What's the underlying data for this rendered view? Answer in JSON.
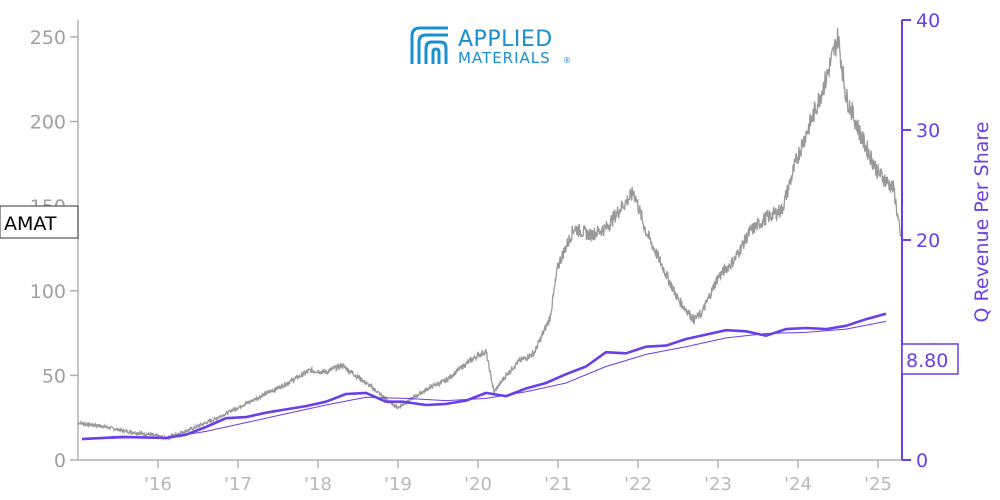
{
  "logo": {
    "line1": "APPLIED",
    "line2": "MATERIALS",
    "mark": "®"
  },
  "ticker_label": "AMAT",
  "current_value_label": "8.80",
  "colors": {
    "price": "#999999",
    "revenue": "#6a3ee8",
    "logo": "#1a8fd0"
  },
  "chart_data": {
    "type": "line",
    "ylabel_right": "Q Revenue Per Share",
    "ylim_left": [
      0,
      260
    ],
    "ylim_right": [
      0,
      40
    ],
    "xlim": [
      2015.0,
      2025.3
    ],
    "x_ticks": [
      {
        "x": 2016,
        "label": "'16"
      },
      {
        "x": 2017,
        "label": "'17"
      },
      {
        "x": 2018,
        "label": "'18"
      },
      {
        "x": 2019,
        "label": "'19"
      },
      {
        "x": 2020,
        "label": "'20"
      },
      {
        "x": 2021,
        "label": "'21"
      },
      {
        "x": 2022,
        "label": "'22"
      },
      {
        "x": 2023,
        "label": "'23"
      },
      {
        "x": 2024,
        "label": "'24"
      },
      {
        "x": 2025,
        "label": "'25"
      }
    ],
    "y_ticks_left": [
      0,
      50,
      100,
      150,
      200,
      250
    ],
    "y_ticks_right": [
      0,
      10,
      20,
      30,
      40
    ],
    "series": [
      {
        "axis": "left",
        "points": [
          [
            2015.0,
            22
          ],
          [
            2015.3,
            20
          ],
          [
            2015.6,
            17
          ],
          [
            2015.9,
            15
          ],
          [
            2016.1,
            13
          ],
          [
            2016.4,
            18
          ],
          [
            2016.7,
            24
          ],
          [
            2017.0,
            31
          ],
          [
            2017.3,
            38
          ],
          [
            2017.6,
            45
          ],
          [
            2017.9,
            53
          ],
          [
            2018.1,
            52
          ],
          [
            2018.3,
            56
          ],
          [
            2018.5,
            49
          ],
          [
            2018.7,
            42
          ],
          [
            2018.9,
            34
          ],
          [
            2019.0,
            31
          ],
          [
            2019.2,
            37
          ],
          [
            2019.4,
            43
          ],
          [
            2019.6,
            47
          ],
          [
            2019.8,
            55
          ],
          [
            2020.0,
            62
          ],
          [
            2020.1,
            64
          ],
          [
            2020.2,
            40
          ],
          [
            2020.35,
            50
          ],
          [
            2020.5,
            58
          ],
          [
            2020.7,
            63
          ],
          [
            2020.9,
            84
          ],
          [
            2021.0,
            115
          ],
          [
            2021.2,
            137
          ],
          [
            2021.4,
            133
          ],
          [
            2021.6,
            137
          ],
          [
            2021.8,
            150
          ],
          [
            2021.95,
            158
          ],
          [
            2022.1,
            135
          ],
          [
            2022.3,
            115
          ],
          [
            2022.5,
            95
          ],
          [
            2022.7,
            83
          ],
          [
            2022.8,
            87
          ],
          [
            2023.0,
            108
          ],
          [
            2023.2,
            118
          ],
          [
            2023.4,
            135
          ],
          [
            2023.6,
            143
          ],
          [
            2023.8,
            148
          ],
          [
            2024.0,
            180
          ],
          [
            2024.2,
            205
          ],
          [
            2024.35,
            225
          ],
          [
            2024.5,
            250
          ],
          [
            2024.6,
            215
          ],
          [
            2024.8,
            190
          ],
          [
            2025.0,
            170
          ],
          [
            2025.2,
            160
          ],
          [
            2025.28,
            132
          ]
        ]
      },
      {
        "axis": "right",
        "points": [
          [
            2015.05,
            1.9
          ],
          [
            2015.55,
            2.1
          ],
          [
            2016.1,
            2.0
          ],
          [
            2016.35,
            2.3
          ],
          [
            2016.6,
            3.0
          ],
          [
            2016.85,
            3.8
          ],
          [
            2017.1,
            3.9
          ],
          [
            2017.35,
            4.3
          ],
          [
            2017.6,
            4.6
          ],
          [
            2017.85,
            4.9
          ],
          [
            2018.1,
            5.3
          ],
          [
            2018.35,
            6.0
          ],
          [
            2018.6,
            6.1
          ],
          [
            2018.85,
            5.3
          ],
          [
            2019.05,
            5.3
          ],
          [
            2019.35,
            5.0
          ],
          [
            2019.6,
            5.1
          ],
          [
            2019.85,
            5.4
          ],
          [
            2020.1,
            6.1
          ],
          [
            2020.35,
            5.8
          ],
          [
            2020.6,
            6.5
          ],
          [
            2020.85,
            7.0
          ],
          [
            2021.1,
            7.8
          ],
          [
            2021.35,
            8.5
          ],
          [
            2021.6,
            9.8
          ],
          [
            2021.85,
            9.7
          ],
          [
            2022.1,
            10.3
          ],
          [
            2022.35,
            10.4
          ],
          [
            2022.6,
            11.0
          ],
          [
            2022.85,
            11.4
          ],
          [
            2023.1,
            11.8
          ],
          [
            2023.35,
            11.7
          ],
          [
            2023.6,
            11.3
          ],
          [
            2023.85,
            11.9
          ],
          [
            2024.1,
            12.0
          ],
          [
            2024.35,
            11.9
          ],
          [
            2024.6,
            12.2
          ],
          [
            2024.85,
            12.8
          ],
          [
            2025.1,
            13.3
          ]
        ]
      },
      {
        "axis": "right",
        "points": [
          [
            2015.05,
            1.9
          ],
          [
            2015.55,
            2.0
          ],
          [
            2016.1,
            2.0
          ],
          [
            2016.6,
            2.6
          ],
          [
            2017.1,
            3.4
          ],
          [
            2017.6,
            4.2
          ],
          [
            2018.1,
            5.0
          ],
          [
            2018.6,
            5.7
          ],
          [
            2019.1,
            5.6
          ],
          [
            2019.6,
            5.4
          ],
          [
            2020.1,
            5.6
          ],
          [
            2020.6,
            6.2
          ],
          [
            2021.1,
            7.0
          ],
          [
            2021.6,
            8.5
          ],
          [
            2022.1,
            9.6
          ],
          [
            2022.6,
            10.3
          ],
          [
            2023.1,
            11.1
          ],
          [
            2023.6,
            11.5
          ],
          [
            2024.1,
            11.6
          ],
          [
            2024.6,
            11.9
          ],
          [
            2025.1,
            12.6
          ]
        ]
      }
    ]
  }
}
